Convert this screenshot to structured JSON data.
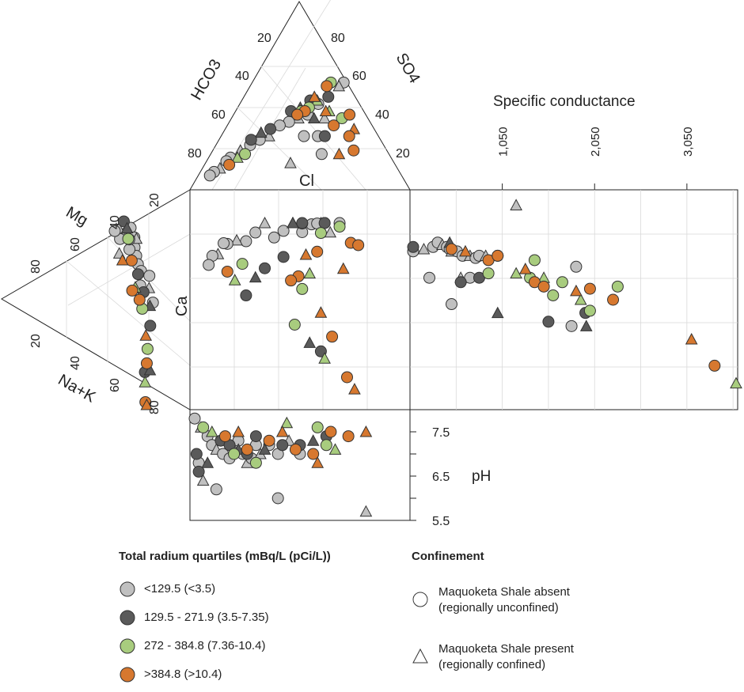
{
  "chart_data": [
    {
      "type": "scatter",
      "title": "",
      "panel": "cation-ternary",
      "corner_labels": {
        "top": "Mg",
        "left_tip": "",
        "bottom": "Na+K",
        "right": "Ca"
      },
      "mg_ticks": [
        "20",
        "40",
        "60",
        "80"
      ],
      "nak_ticks": [
        "20",
        "40",
        "60",
        "80"
      ],
      "ca_label": "Ca",
      "series": [
        {
          "name": "<129.5 (<3.5)",
          "points": [
            [
              55,
              5
            ],
            [
              60,
              10
            ],
            [
              50,
              8
            ],
            [
              62,
              12
            ],
            [
              58,
              6
            ],
            [
              48,
              12
            ],
            [
              45,
              15
            ],
            [
              65,
              8
            ],
            [
              52,
              14
            ],
            [
              42,
              18
            ],
            [
              60,
              18
            ],
            [
              38,
              20
            ],
            [
              30,
              20
            ],
            [
              28,
              25
            ],
            [
              36,
              26
            ],
            [
              22,
              30
            ],
            [
              48,
              8
            ],
            [
              68,
              10
            ],
            [
              54,
              10
            ]
          ]
        },
        {
          "name": "129.5 - 271.9 (3.5-7.35)",
          "points": [
            [
              62,
              4
            ],
            [
              58,
              6
            ],
            [
              40,
              22
            ],
            [
              32,
              28
            ],
            [
              24,
              32
            ],
            [
              20,
              40
            ],
            [
              16,
              60
            ],
            [
              12,
              58
            ]
          ]
        },
        {
          "name": "272 - 384.8 (7.36-10.4)",
          "points": [
            [
              55,
              10
            ],
            [
              40,
              28
            ],
            [
              30,
              35
            ],
            [
              18,
              50
            ],
            [
              14,
              64
            ]
          ]
        },
        {
          "name": ">384.8 (>10.4)",
          "points": [
            [
              48,
              18
            ],
            [
              56,
              20
            ],
            [
              42,
              30
            ],
            [
              34,
              32
            ],
            [
              22,
              45
            ],
            [
              16,
              56
            ],
            [
              10,
              72
            ],
            [
              6,
              78
            ]
          ]
        }
      ]
    },
    {
      "type": "scatter",
      "panel": "anion-ternary",
      "corner_labels": {
        "left": "HCO3",
        "right": "SO4",
        "bottom": "Cl"
      },
      "hco3_ticks": [
        "20",
        "40",
        "60",
        "80"
      ],
      "so4_ticks": [
        "80",
        "60",
        "40",
        "20"
      ],
      "series": [
        {
          "name": "<129.5 (<3.5)",
          "points": [
            [
              20,
              60
            ],
            [
              25,
              58
            ],
            [
              35,
              48
            ],
            [
              40,
              42
            ],
            [
              45,
              40
            ],
            [
              50,
              38
            ],
            [
              55,
              36
            ],
            [
              60,
              30
            ],
            [
              65,
              28
            ],
            [
              70,
              25
            ],
            [
              75,
              22
            ],
            [
              80,
              18
            ],
            [
              82,
              16
            ],
            [
              85,
              12
            ],
            [
              88,
              10
            ],
            [
              90,
              8
            ],
            [
              30,
              40
            ],
            [
              28,
              20
            ],
            [
              40,
              30
            ],
            [
              45,
              15
            ],
            [
              32,
              30
            ]
          ]
        },
        {
          "name": "129.5 - 271.9 (3.5-7.35)",
          "points": [
            [
              40,
              50
            ],
            [
              45,
              46
            ],
            [
              50,
              44
            ],
            [
              60,
              34
            ],
            [
              65,
              32
            ],
            [
              70,
              28
            ],
            [
              30,
              52
            ],
            [
              36,
              40
            ],
            [
              28,
              30
            ]
          ]
        },
        {
          "name": "272 - 384.8 (7.36-10.4)",
          "points": [
            [
              30,
              60
            ],
            [
              36,
              50
            ],
            [
              40,
              46
            ],
            [
              44,
              44
            ],
            [
              28,
              44
            ],
            [
              20,
              40
            ],
            [
              72,
              20
            ],
            [
              76,
              18
            ]
          ]
        },
        {
          "name": ">384.8 (>10.4)",
          "points": [
            [
              32,
              58
            ],
            [
              38,
              52
            ],
            [
              42,
              44
            ],
            [
              46,
              42
            ],
            [
              30,
              44
            ],
            [
              24,
              36
            ],
            [
              16,
              42
            ],
            [
              12,
              34
            ],
            [
              14,
              30
            ],
            [
              10,
              22
            ],
            [
              18,
              20
            ],
            [
              80,
              14
            ]
          ]
        }
      ]
    },
    {
      "type": "scatter",
      "panel": "specific-conductance",
      "xlabel": "Specific conductance",
      "x_ticks": [
        "1,050",
        "2,050",
        "3,050"
      ],
      "xlim": [
        50,
        3600
      ],
      "series": [
        {
          "name": "<129.5 (<3.5)",
          "points": [
            [
              80,
              72
            ],
            [
              200,
              73
            ],
            [
              300,
              74
            ],
            [
              350,
              76
            ],
            [
              400,
              75
            ],
            [
              450,
              74
            ],
            [
              480,
              73
            ],
            [
              500,
              72
            ],
            [
              560,
              72
            ],
            [
              620,
              70
            ],
            [
              700,
              70
            ],
            [
              760,
              69
            ],
            [
              800,
              70
            ],
            [
              870,
              70
            ],
            [
              1000,
              70
            ],
            [
              260,
              60
            ],
            [
              600,
              60
            ],
            [
              700,
              60
            ],
            [
              500,
              48
            ],
            [
              1200,
              93
            ],
            [
              1850,
              65
            ],
            [
              1800,
              38
            ]
          ]
        },
        {
          "name": "129.5 - 271.9 (3.5-7.35)",
          "points": [
            [
              80,
              74
            ],
            [
              480,
              76
            ],
            [
              600,
              58
            ],
            [
              800,
              60
            ],
            [
              1000,
              44
            ],
            [
              1550,
              40
            ],
            [
              1950,
              44
            ],
            [
              1960,
              38
            ]
          ]
        },
        {
          "name": "272 - 384.8 (7.36-10.4)",
          "points": [
            [
              900,
              62
            ],
            [
              1200,
              62
            ],
            [
              1350,
              60
            ],
            [
              1400,
              68
            ],
            [
              1500,
              60
            ],
            [
              1600,
              52
            ],
            [
              1700,
              58
            ],
            [
              1900,
              50
            ],
            [
              2000,
              45
            ],
            [
              2300,
              56
            ],
            [
              3600,
              12
            ]
          ]
        },
        {
          "name": ">384.8 (>10.4)",
          "points": [
            [
              500,
              73
            ],
            [
              650,
              72
            ],
            [
              900,
              68
            ],
            [
              1000,
              70
            ],
            [
              1300,
              64
            ],
            [
              1400,
              58
            ],
            [
              1500,
              56
            ],
            [
              1850,
              54
            ],
            [
              2000,
              55
            ],
            [
              2250,
              50
            ],
            [
              3100,
              32
            ],
            [
              3350,
              20
            ]
          ]
        }
      ]
    },
    {
      "type": "scatter",
      "panel": "ph",
      "ylabel": "pH",
      "y_ticks": [
        "7.5",
        "6.5",
        "5.5"
      ],
      "ylim": [
        5.5,
        8.0
      ],
      "series": [
        {
          "name": "<129.5 (<3.5)",
          "points": [
            [
              2,
              7.8
            ],
            [
              5,
              7.6
            ],
            [
              8,
              7.4
            ],
            [
              10,
              7.2
            ],
            [
              12,
              7.1
            ],
            [
              15,
              7.0
            ],
            [
              18,
              6.9
            ],
            [
              20,
              7.1
            ],
            [
              22,
              7.3
            ],
            [
              24,
              7.0
            ],
            [
              26,
              6.8
            ],
            [
              28,
              6.9
            ],
            [
              30,
              7.2
            ],
            [
              32,
              7.0
            ],
            [
              36,
              7.2
            ],
            [
              40,
              7.0
            ],
            [
              45,
              7.3
            ],
            [
              50,
              7.0
            ],
            [
              4,
              6.8
            ],
            [
              6,
              6.4
            ],
            [
              12,
              6.2
            ],
            [
              40,
              6.0
            ],
            [
              80,
              5.7
            ]
          ]
        },
        {
          "name": "129.5 - 271.9 (3.5-7.35)",
          "points": [
            [
              3,
              7.0
            ],
            [
              8,
              6.8
            ],
            [
              14,
              7.3
            ],
            [
              18,
              7.2
            ],
            [
              22,
              7.1
            ],
            [
              26,
              7.0
            ],
            [
              30,
              7.4
            ],
            [
              34,
              7.1
            ],
            [
              42,
              7.2
            ],
            [
              50,
              7.2
            ],
            [
              56,
              7.3
            ],
            [
              62,
              7.4
            ],
            [
              4,
              6.6
            ]
          ]
        },
        {
          "name": "272 - 384.8 (7.36-10.4)",
          "points": [
            [
              6,
              7.6
            ],
            [
              10,
              7.5
            ],
            [
              20,
              7.0
            ],
            [
              30,
              6.8
            ],
            [
              44,
              7.7
            ],
            [
              58,
              7.6
            ],
            [
              62,
              7.2
            ],
            [
              66,
              7.1
            ]
          ]
        },
        {
          "name": ">384.8 (>10.4)",
          "points": [
            [
              16,
              7.4
            ],
            [
              22,
              7.5
            ],
            [
              26,
              7.1
            ],
            [
              36,
              7.3
            ],
            [
              42,
              7.5
            ],
            [
              48,
              7.1
            ],
            [
              56,
              7.0
            ],
            [
              58,
              6.8
            ],
            [
              64,
              7.5
            ],
            [
              72,
              7.4
            ],
            [
              80,
              7.5
            ]
          ]
        }
      ]
    }
  ],
  "colors": {
    "<129.5 (<3.5)": "#c0c0c0",
    "129.5 - 271.9 (3.5-7.35)": "#5a5a5a",
    "272 - 384.8 (7.36-10.4)": "#a8cc7e",
    ">384.8 (>10.4)": "#d7782f"
  },
  "legend": {
    "radium_title": "Total radium quartiles (mBq/L (pCi/L))",
    "radium_items": [
      {
        "label": "<129.5 (<3.5)",
        "color": "#c0c0c0"
      },
      {
        "label": "129.5 - 271.9 (3.5-7.35)",
        "color": "#5a5a5a"
      },
      {
        "label": "272 - 384.8 (7.36-10.4)",
        "color": "#a8cc7e"
      },
      {
        "label": ">384.8 (>10.4)",
        "color": "#d7782f"
      }
    ],
    "confinement_title": "Confinement",
    "confinement_items": [
      {
        "label_line1": "Maquoketa Shale absent",
        "label_line2": "(regionally unconfined)",
        "shape": "circle"
      },
      {
        "label_line1": "Maquoketa Shale present",
        "label_line2": "(regionally confined)",
        "shape": "triangle"
      }
    ]
  }
}
